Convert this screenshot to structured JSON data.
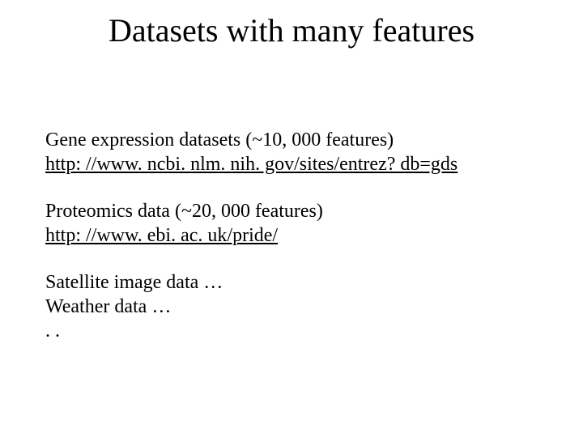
{
  "title": "Datasets with many features",
  "section1": {
    "heading": "Gene expression datasets (~10, 000 features)",
    "link": "http: //www. ncbi. nlm. nih. gov/sites/entrez? db=gds"
  },
  "section2": {
    "heading": "Proteomics data (~20, 000 features)",
    "link": "http: //www. ebi. ac. uk/pride/"
  },
  "section3": {
    "line1": "Satellite image data …",
    "line2": "Weather data …",
    "line3": ". ."
  }
}
